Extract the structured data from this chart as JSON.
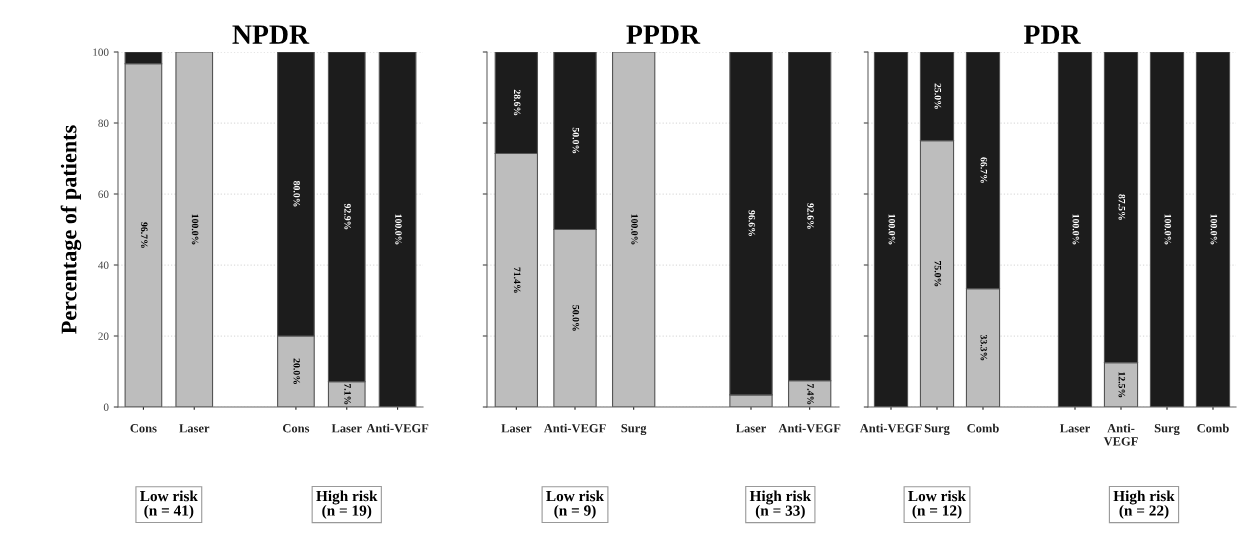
{
  "chart_data": [
    {
      "type": "bar",
      "title": "NPDR",
      "ylabel": "Percentage of patients",
      "stacked": true,
      "grid": "y",
      "ylim": [
        0,
        100
      ],
      "yticks": [
        0,
        20,
        40,
        60,
        80,
        100
      ],
      "categories": [
        "Cons",
        "Laser",
        null,
        "Cons",
        "Laser",
        "Anti-VEGF"
      ],
      "series": [
        {
          "color": "#bdbdbd",
          "values": [
            96.7,
            100,
            null,
            20,
            7.1,
            0
          ],
          "value_labels": [
            "96.7%",
            "100.0%",
            null,
            "20.0%",
            "7.1%",
            null
          ]
        },
        {
          "color": "#1c1c1c",
          "values": [
            3.3,
            0,
            null,
            80,
            92.9,
            100
          ],
          "value_labels": [
            null,
            null,
            null,
            "80.0%",
            "92.9%",
            "100.0%"
          ]
        }
      ],
      "annotations": [
        "Low risk\n(n = 41)",
        "High risk\n(n = 19)"
      ]
    },
    {
      "type": "bar",
      "title": "PPDR",
      "stacked": true,
      "grid": "y",
      "ylim": [
        0,
        100
      ],
      "yticks": [
        0,
        20,
        40,
        60,
        80,
        100
      ],
      "tick_labels": "x",
      "categories": [
        "Laser",
        "Anti-VEGF",
        "Surg",
        null,
        "Laser",
        "Anti-VEGF"
      ],
      "series": [
        {
          "color": "#bdbdbd",
          "values": [
            71.4,
            50,
            100,
            null,
            3.4,
            7.4
          ],
          "value_labels": [
            "71.4%",
            "50.0%",
            "100.0%",
            null,
            null,
            "7.4%"
          ]
        },
        {
          "color": "#1c1c1c",
          "values": [
            28.6,
            50,
            0,
            null,
            96.6,
            92.6
          ],
          "value_labels": [
            "28.6%",
            "50.0%",
            null,
            null,
            "96.6%",
            "92.6%"
          ]
        }
      ],
      "annotations": [
        "Low risk\n(n = 9)",
        "High risk\n(n = 33)"
      ]
    },
    {
      "type": "bar",
      "title": "PDR",
      "stacked": true,
      "grid": "y",
      "ylim": [
        0,
        100
      ],
      "yticks": [
        0,
        20,
        40,
        60,
        80,
        100
      ],
      "tick_labels": "x",
      "categories": [
        "Anti-VEGF",
        "Surg",
        "Comb",
        null,
        "Laser",
        "Anti-\nVEGF",
        "Surg",
        "Comb"
      ],
      "series": [
        {
          "color": "#bdbdbd",
          "values": [
            0,
            75,
            33.3,
            null,
            0,
            12.5,
            0,
            0
          ],
          "value_labels": [
            null,
            "75.0%",
            "33.3%",
            null,
            null,
            "12.5%",
            null,
            null
          ]
        },
        {
          "color": "#1c1c1c",
          "values": [
            100,
            25,
            66.7,
            null,
            100,
            87.5,
            100,
            100
          ],
          "value_labels": [
            "100.0%",
            "25.0%",
            "66.7%",
            null,
            "100.0%",
            "87.5%",
            "100.0%",
            "100.0%"
          ]
        }
      ],
      "annotations": [
        "Low risk\n(n = 12)",
        "High risk\n(n = 22)"
      ]
    }
  ]
}
